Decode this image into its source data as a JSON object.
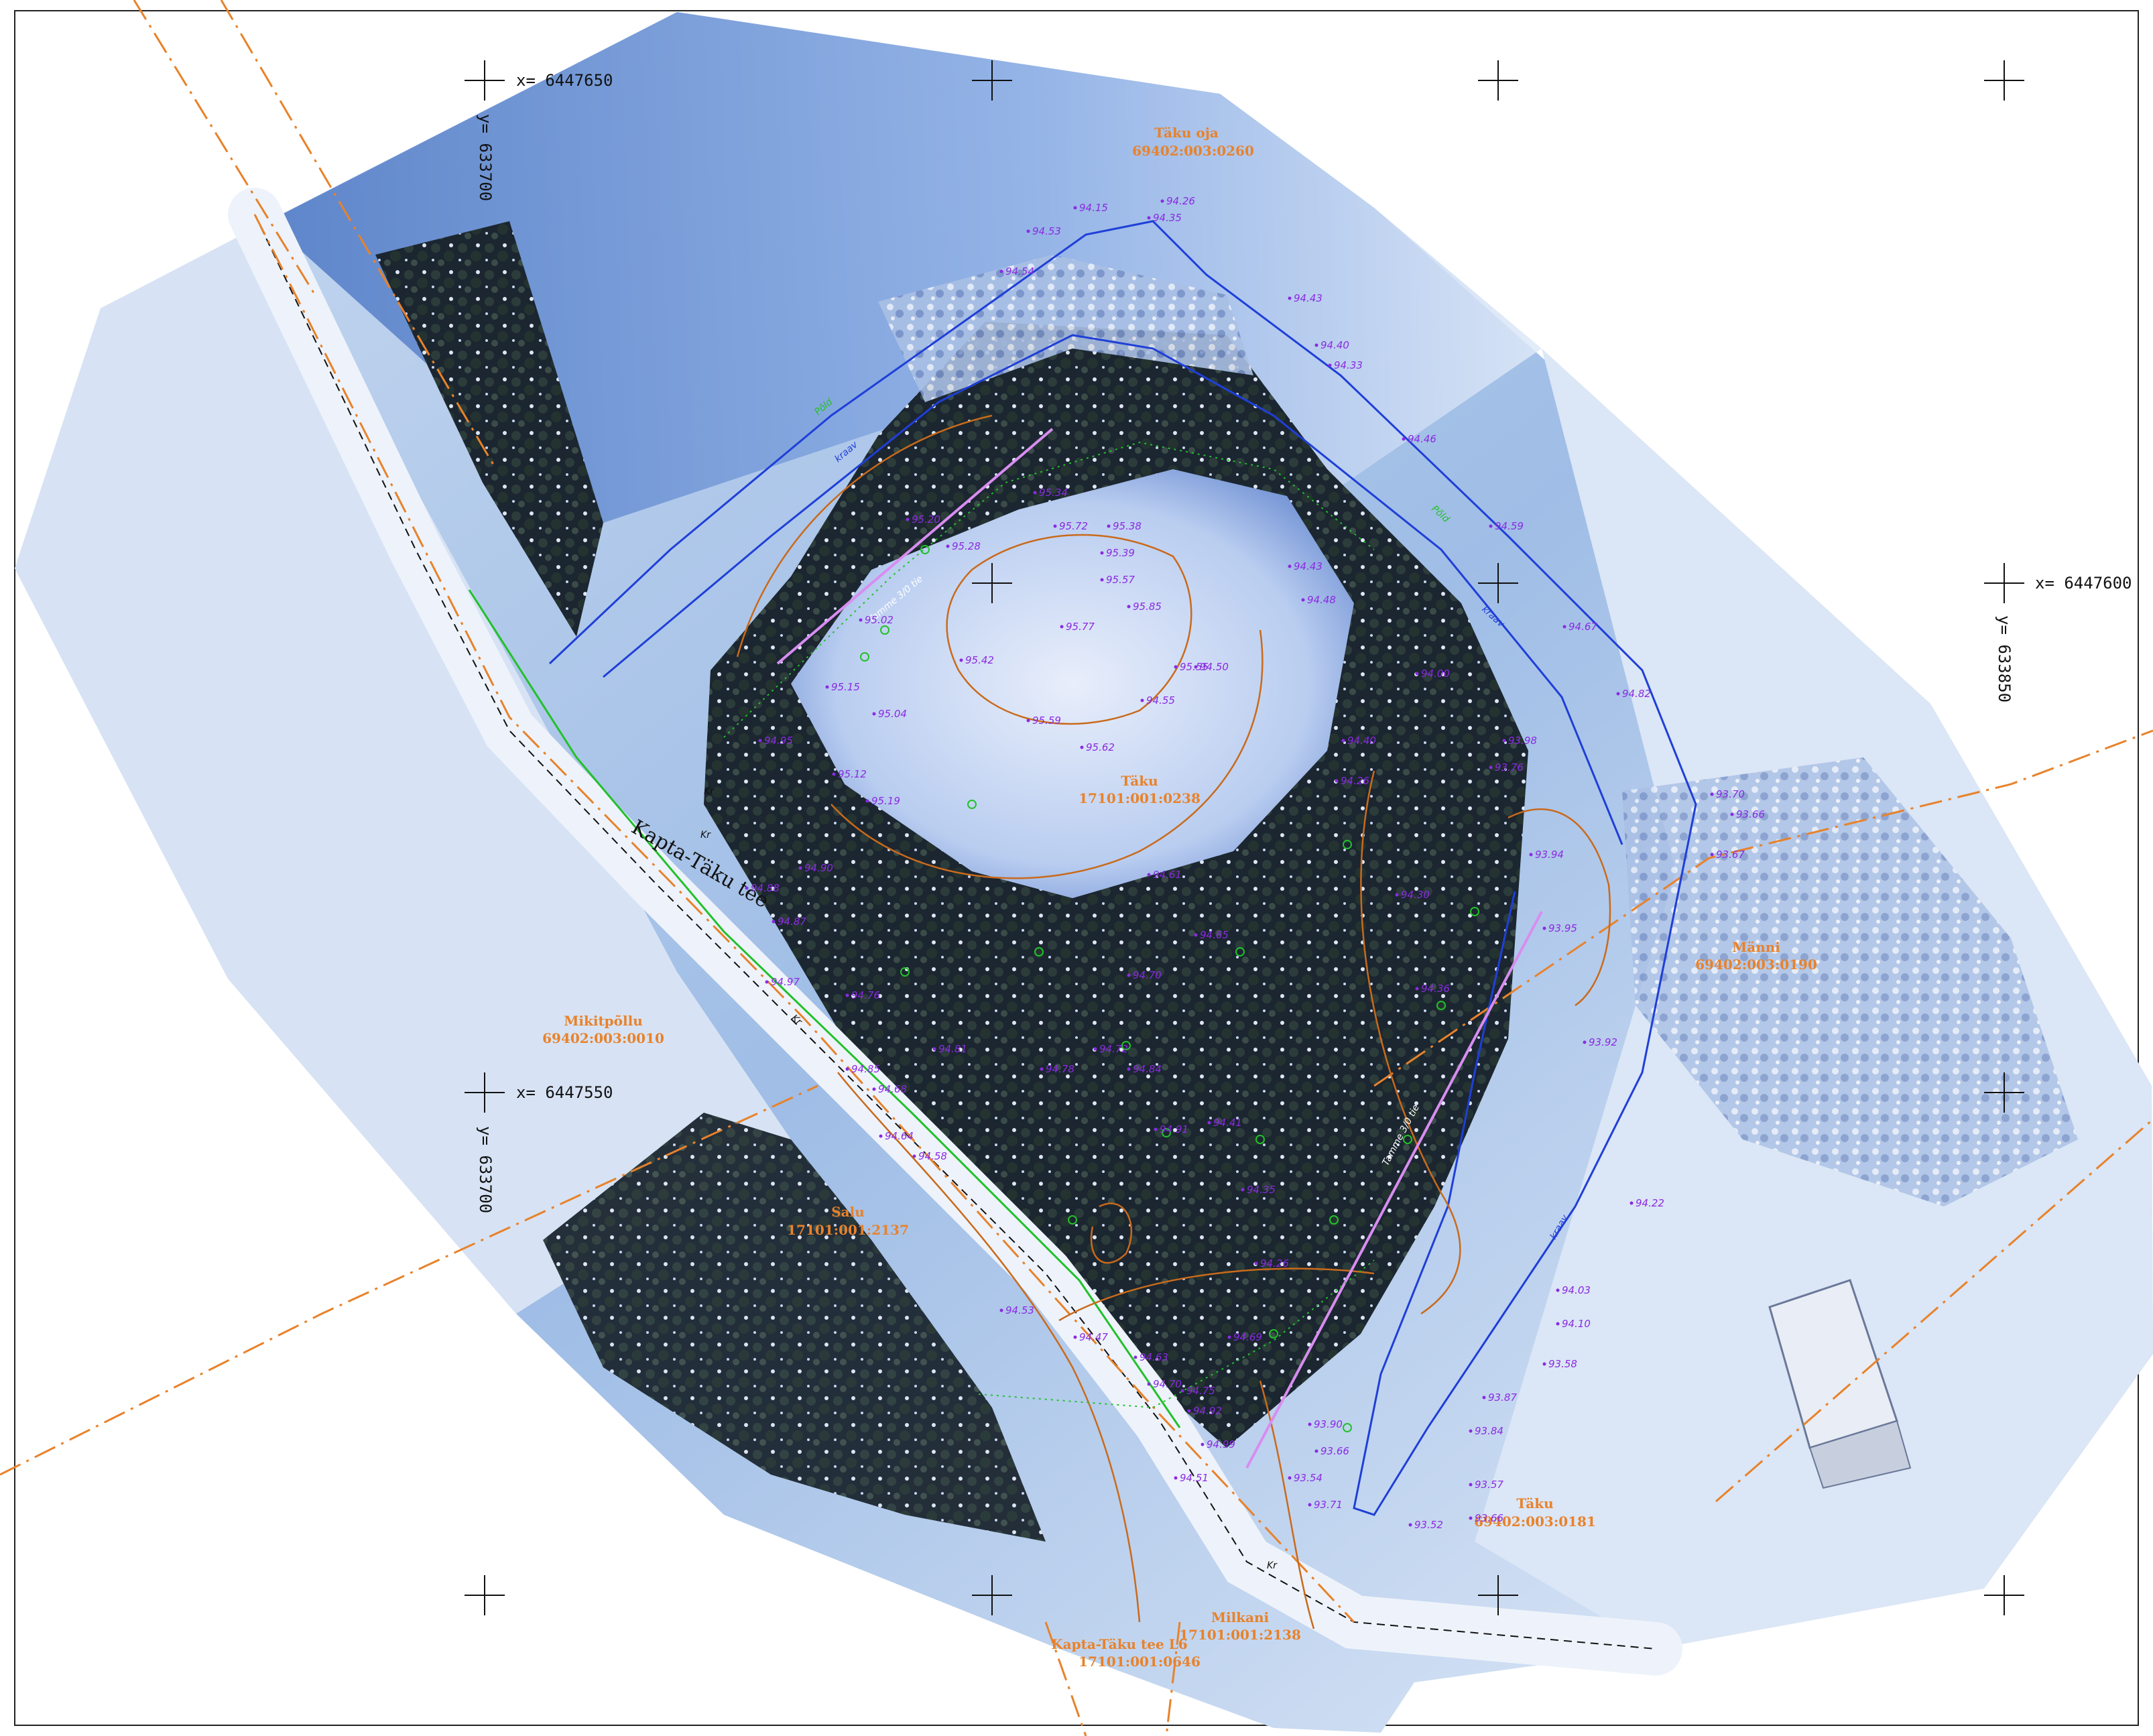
{
  "coordinate_labels": [
    {
      "id": "nw-x",
      "text": "x=  6447650"
    },
    {
      "id": "nw-y",
      "text": "y=  633700"
    },
    {
      "id": "e-x",
      "text": "x=  6447600"
    },
    {
      "id": "e-y",
      "text": "y=  633850"
    },
    {
      "id": "sw-x",
      "text": "x=  6447550"
    },
    {
      "id": "sw-y",
      "text": "y=  633700"
    }
  ],
  "road_name": "Kapta-Täku tee",
  "parcels": [
    {
      "name": "Täku oja",
      "id": "69402:003:0260"
    },
    {
      "name": "Täku",
      "id": "17101:001:0238"
    },
    {
      "name": "Männi",
      "id": "69402:003:0190"
    },
    {
      "name": "Mikitpõllu",
      "id": "69402:003:0010"
    },
    {
      "name": "Salu",
      "id": "17101:001:2137"
    },
    {
      "name": "Täku",
      "id": "69402:003:0181"
    },
    {
      "name": "Milkani",
      "id": "17101:001:2138"
    },
    {
      "name": "Kapta-Täku tee L6",
      "id": "17101:001:0646"
    }
  ],
  "feature_labels": {
    "tree_north": "Tamme 3/0 tie",
    "tree_east": "Tamme 3/0 tie",
    "kraav_a": "kraav",
    "kraav_b": "kraav",
    "kraav_c": "kraav",
    "pold_a": "Põld",
    "pold_b": "Põld",
    "kr_a": "Kr",
    "kr_b": "Kr",
    "kr_c": "Kr",
    "kr_d": "Kr"
  },
  "spot_heights": [
    "94.15",
    "94.26",
    "94.35",
    "94.53",
    "94.54",
    "94.43",
    "94.40",
    "94.33",
    "94.46",
    "94.59",
    "94.67",
    "94.82",
    "93.70",
    "93.66",
    "93.67",
    "94.00",
    "93.98",
    "93.76",
    "93.94",
    "93.95",
    "93.92",
    "93.87",
    "93.84",
    "93.57",
    "93.66",
    "93.52",
    "93.54",
    "93.71",
    "93.66",
    "93.90",
    "94.03",
    "94.10",
    "93.58",
    "94.22",
    "94.36",
    "94.26",
    "94.30",
    "94.40",
    "94.43",
    "94.48",
    "94.50",
    "94.55",
    "94.61",
    "94.65",
    "94.70",
    "94.72",
    "94.78",
    "94.81",
    "94.85",
    "94.87",
    "94.90",
    "94.95",
    "95.02",
    "95.04",
    "95.12",
    "95.15",
    "95.19",
    "95.20",
    "95.28",
    "95.34",
    "95.38",
    "95.39",
    "95.42",
    "95.55",
    "95.57",
    "95.59",
    "95.62",
    "95.72",
    "95.77",
    "95.85",
    "94.97",
    "94.88",
    "94.76",
    "94.68",
    "94.64",
    "94.58",
    "94.53",
    "94.47",
    "94.63",
    "94.70",
    "94.75",
    "94.92",
    "94.99",
    "94.51",
    "94.41",
    "94.35",
    "94.26",
    "94.84",
    "94.91",
    "94.69"
  ],
  "colors": {
    "boundary": "#e8822a",
    "ditch": "#1f3fd8",
    "contour": "#c96a1b",
    "spot_height": "#8a2be2",
    "tree_line": "#d88df0",
    "field_edge": "#22c12a"
  }
}
